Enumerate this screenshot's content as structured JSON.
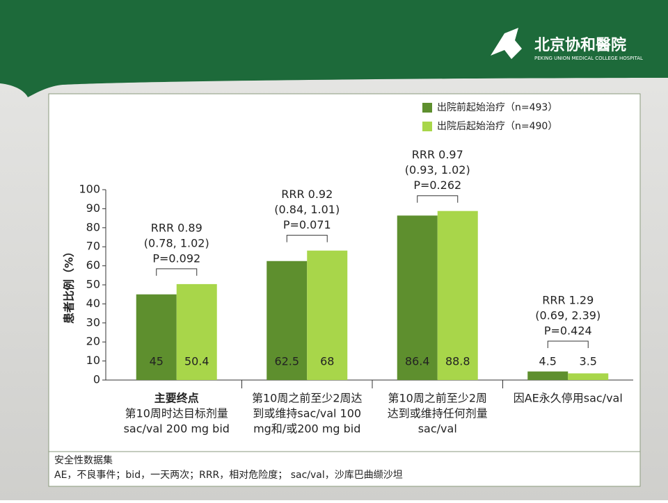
{
  "header": {
    "logo_name": "北京协和醫院",
    "logo_subtitle": "PEKING UNION MEDICAL COLLEGE HOSPITAL"
  },
  "chart_data": {
    "type": "bar",
    "y_label": "患者比例（%）",
    "categories": [
      [
        "主要终点",
        "第10周时达目标剂量",
        "sac/val 200 mg bid"
      ],
      [
        "第10周之前至少2周达",
        "到或维持sac/val 100",
        "mg和/或200 mg bid"
      ],
      [
        "第10周之前至少2周",
        "达到或维持任何剂量",
        "sac/val"
      ],
      [
        "因AE永久停用sac/val"
      ]
    ],
    "series": [
      {
        "name": "出院前起始治疗（n=493）",
        "color": "#5e8f2e",
        "values": [
          45,
          62.5,
          86.4,
          4.5
        ]
      },
      {
        "name": "出院后起始治疗（n=490）",
        "color": "#a8d64a",
        "values": [
          50.4,
          68,
          88.8,
          3.5
        ]
      }
    ],
    "annotations": [
      [
        "RRR 0.89",
        "(0.78, 1.02)",
        "P=0.092"
      ],
      [
        "RRR 0.92",
        "(0.84, 1.01)",
        "P=0.071"
      ],
      [
        "RRR 0.97",
        "(0.93, 1.02)",
        "P=0.262"
      ],
      [
        "RRR 1.29",
        "(0.69, 2.39)",
        "P=0.424"
      ]
    ],
    "ylim": [
      0,
      100
    ],
    "yticks": [
      0,
      10,
      20,
      30,
      40,
      50,
      60,
      70,
      80,
      90,
      100
    ],
    "legend": "top-right"
  },
  "footer": {
    "title": "安全性数据集",
    "text": "AE，不良事件；bid，一天两次；RRR，相对危险度；  sac/val，沙库巴曲缬沙坦"
  }
}
